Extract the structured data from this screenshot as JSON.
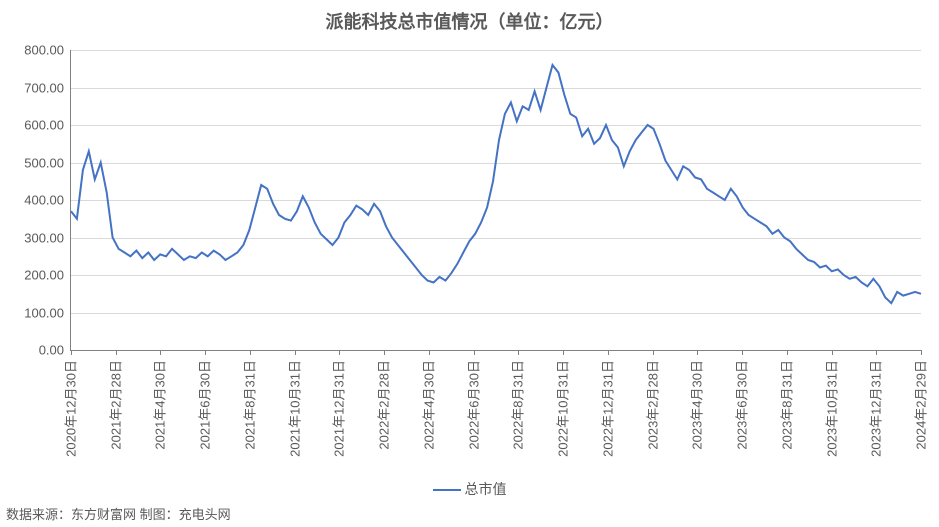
{
  "chart": {
    "type": "line",
    "title": "派能科技总市值情况（单位：亿元）",
    "title_fontsize": 18,
    "legend_label": "总市值",
    "legend_prefix": "---",
    "source_text": "数据来源：东方财富网 制图：充电头网",
    "background_color": "#ffffff",
    "line_color": "#4472c4",
    "line_width": 2,
    "grid_color": "#d9d9d9",
    "axis_color": "#808080",
    "text_color": "#595959",
    "ylim": [
      0,
      800
    ],
    "ytick_step": 100,
    "ytick_format": "0.00",
    "ytick_labels": [
      "0.00",
      "100.00",
      "200.00",
      "300.00",
      "400.00",
      "500.00",
      "600.00",
      "700.00",
      "800.00"
    ],
    "xtick_labels": [
      "2020年12月30日",
      "2021年2月28日",
      "2021年4月30日",
      "2021年6月30日",
      "2021年8月31日",
      "2021年10月31日",
      "2021年12月31日",
      "2022年2月28日",
      "2022年4月30日",
      "2022年6月30日",
      "2022年8月31日",
      "2022年10月31日",
      "2022年12月31日",
      "2023年2月28日",
      "2023年4月30日",
      "2023年6月30日",
      "2023年8月31日",
      "2023年10月31日",
      "2023年12月31日",
      "2024年2月29日"
    ],
    "label_fontsize": 13,
    "series": {
      "name": "总市值",
      "values": [
        370,
        350,
        480,
        530,
        455,
        500,
        420,
        300,
        270,
        260,
        250,
        265,
        245,
        260,
        240,
        255,
        250,
        270,
        255,
        240,
        250,
        245,
        260,
        250,
        265,
        255,
        240,
        250,
        260,
        280,
        320,
        380,
        440,
        430,
        390,
        360,
        350,
        345,
        370,
        410,
        380,
        340,
        310,
        295,
        280,
        300,
        340,
        360,
        385,
        375,
        360,
        390,
        370,
        330,
        300,
        280,
        260,
        240,
        220,
        200,
        185,
        180,
        195,
        185,
        205,
        230,
        260,
        290,
        310,
        340,
        380,
        450,
        560,
        630,
        660,
        610,
        650,
        640,
        690,
        640,
        700,
        760,
        740,
        680,
        630,
        620,
        570,
        590,
        550,
        565,
        600,
        560,
        540,
        490,
        530,
        560,
        580,
        600,
        590,
        550,
        505,
        480,
        455,
        490,
        480,
        460,
        455,
        430,
        420,
        410,
        400,
        430,
        410,
        380,
        360,
        350,
        340,
        330,
        310,
        320,
        300,
        290,
        270,
        255,
        240,
        235,
        220,
        225,
        210,
        215,
        200,
        190,
        195,
        180,
        170,
        190,
        170,
        140,
        125,
        155,
        145,
        150,
        155,
        150
      ]
    }
  }
}
